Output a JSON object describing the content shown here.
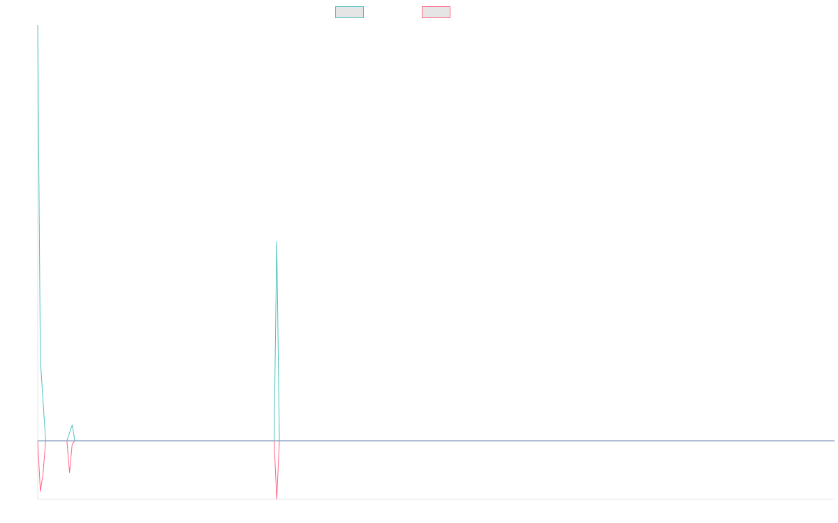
{
  "chart_data": {
    "type": "line",
    "title": "",
    "xlabel": "",
    "ylabel": "",
    "grid": false,
    "legend_position": "top-center",
    "colors": {
      "series_a": "#4bc0c0",
      "series_b": "#ff6384",
      "legend_fill": "#e5e5e5",
      "axis": "#e5e5e5",
      "zero_line": "#8fa4bf"
    },
    "xlim": [
      0,
      300
    ],
    "ylim": [
      -37,
      263
    ],
    "series": [
      {
        "name": "",
        "color": "#4bc0c0",
        "points": [
          [
            0,
            263
          ],
          [
            1,
            51
          ],
          [
            3,
            0
          ],
          [
            11,
            0
          ],
          [
            13,
            10
          ],
          [
            14,
            0
          ],
          [
            89,
            0
          ],
          [
            90,
            126
          ],
          [
            91,
            0
          ],
          [
            300,
            0
          ]
        ]
      },
      {
        "name": "",
        "color": "#ff6384",
        "points": [
          [
            0,
            0
          ],
          [
            1,
            -32
          ],
          [
            2,
            -21
          ],
          [
            3,
            0
          ],
          [
            11,
            0
          ],
          [
            12,
            -20
          ],
          [
            13,
            -2
          ],
          [
            14,
            0
          ],
          [
            89,
            0
          ],
          [
            90,
            -37
          ],
          [
            91,
            0
          ],
          [
            300,
            0
          ]
        ]
      }
    ]
  }
}
